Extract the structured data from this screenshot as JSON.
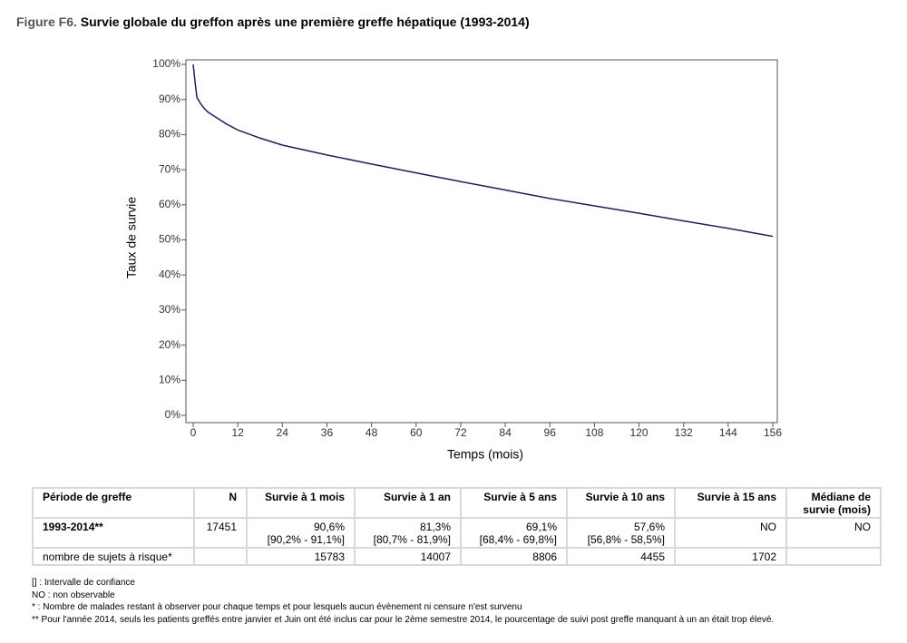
{
  "figure_label": "Figure F6.",
  "chart_data": {
    "type": "line",
    "title": "Survie globale du greffon après une première greffe hépatique (1993-2014)",
    "x_label": "Temps (mois)",
    "y_label": "Taux de survie",
    "x": [
      0,
      0.5,
      1,
      2,
      3,
      4,
      6,
      9,
      12,
      18,
      24,
      36,
      48,
      60,
      72,
      84,
      96,
      108,
      120,
      132,
      144,
      156
    ],
    "series": [
      {
        "color": "#1f1f5a",
        "values": [
          100,
          95,
          90.6,
          88.8,
          87.4,
          86.4,
          85,
          83,
          81.3,
          79,
          77,
          74.2,
          71.6,
          69.1,
          66.6,
          64.2,
          61.8,
          59.7,
          57.6,
          55.4,
          53.3,
          51
        ]
      }
    ],
    "xlim": [
      0,
      156
    ],
    "xticks": [
      0,
      12,
      24,
      36,
      48,
      60,
      72,
      84,
      96,
      108,
      120,
      132,
      144,
      156
    ],
    "ylim": [
      0,
      100
    ],
    "yticks": [
      {
        "value": 0,
        "label": "0%"
      },
      {
        "value": 10,
        "label": "10%"
      },
      {
        "value": 20,
        "label": "20%"
      },
      {
        "value": 30,
        "label": "30%"
      },
      {
        "value": 40,
        "label": "40%"
      },
      {
        "value": 50,
        "label": "50%"
      },
      {
        "value": 60,
        "label": "60%"
      },
      {
        "value": 70,
        "label": "70%"
      },
      {
        "value": 80,
        "label": "80%"
      },
      {
        "value": 90,
        "label": "90%"
      },
      {
        "value": 100,
        "label": "100%"
      }
    ],
    "grid": false
  },
  "table": {
    "header": [
      "Période de greffe",
      "N",
      "Survie à 1 mois",
      "Survie à 1 an",
      "Survie à 5 ans",
      "Survie à 10 ans",
      "Survie à 15 ans",
      "Médiane de survie (mois)"
    ],
    "row": {
      "period": "1993-2014**",
      "n": "17451",
      "survival": [
        {
          "value": "90,6%",
          "ci": "[90,2% - 91,1%]"
        },
        {
          "value": "81,3%",
          "ci": "[80,7% - 81,9%]"
        },
        {
          "value": "69,1%",
          "ci": "[68,4% - 69,8%]"
        },
        {
          "value": "57,6%",
          "ci": "[56,8% - 58,5%]"
        },
        {
          "value": "NO"
        }
      ],
      "median": "NO"
    },
    "at_risk": {
      "label": "nombre de sujets à risque*",
      "counts": [
        "15783",
        "14007",
        "8806",
        "4455",
        "1702"
      ]
    }
  },
  "notes": [
    "[] : Intervalle de confiance",
    "NO : non observable",
    "* : Nombre de malades restant à observer pour chaque temps et pour lesquels aucun évènement ni censure n'est survenu",
    "** Pour l'année 2014, seuls les patients greffés entre janvier et Juin ont été inclus car pour le 2ème semestre 2014, le pourcentage de suivi post greffe manquant à un an était trop élevé."
  ]
}
